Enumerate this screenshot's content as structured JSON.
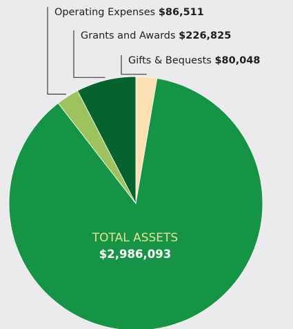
{
  "chart_data": {
    "type": "pie",
    "title": "",
    "slices": [
      {
        "label": "Gifts & Bequests",
        "value": 80048,
        "value_label": "$80,048",
        "color": "#fde0b2"
      },
      {
        "label": "Total Assets remainder",
        "value": 2592709,
        "value_label": "",
        "color": "#169446"
      },
      {
        "label": "Operating Expenses",
        "value": 86511,
        "value_label": "$86,511",
        "color": "#9ec25e"
      },
      {
        "label": "Grants and Awards",
        "value": 226825,
        "value_label": "$226,825",
        "color": "#07632e"
      }
    ],
    "center": {
      "title": "TOTAL ASSETS",
      "value": "$2,986,093"
    }
  },
  "colors": {
    "background": "#ebeaec",
    "leader_line": "#3a3a3a"
  }
}
